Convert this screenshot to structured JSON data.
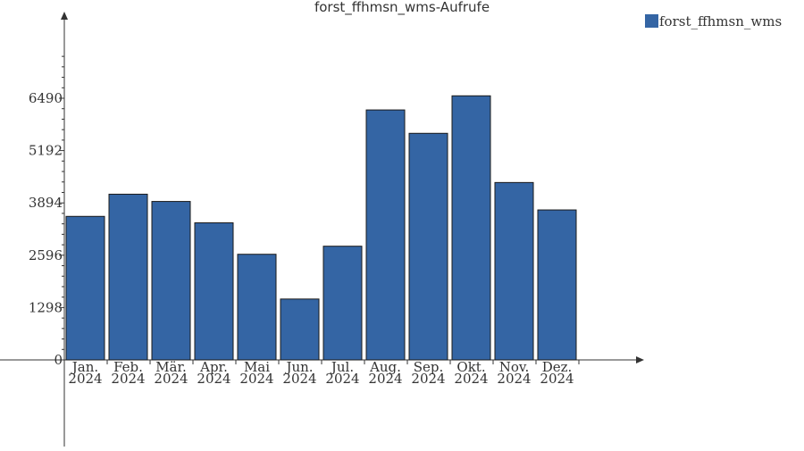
{
  "chart_data": {
    "type": "bar",
    "title": "forst_ffhmsn_wms-Aufrufe",
    "categories": [
      [
        "Jan.",
        "2024"
      ],
      [
        "Feb.",
        "2024"
      ],
      [
        "Mär.",
        "2024"
      ],
      [
        "Apr.",
        "2024"
      ],
      [
        "Mai",
        "2024"
      ],
      [
        "Jun.",
        "2024"
      ],
      [
        "Jul.",
        "2024"
      ],
      [
        "Aug.",
        "2024"
      ],
      [
        "Sep.",
        "2024"
      ],
      [
        "Okt.",
        "2024"
      ],
      [
        "Nov.",
        "2024"
      ],
      [
        "Dez.",
        "2024"
      ]
    ],
    "series": [
      {
        "name": "forst_ffhmsn_wms",
        "color": "#3465a4",
        "values": [
          3560,
          4110,
          3930,
          3400,
          2620,
          1510,
          2820,
          6200,
          5620,
          6550,
          4400,
          3720
        ]
      }
    ],
    "yticks": [
      "0",
      "1298",
      "2596",
      "3894",
      "5192",
      "6490"
    ],
    "ytick_values": [
      0,
      1298,
      2596,
      3894,
      5192,
      6490
    ],
    "ylim": [
      0,
      7000
    ],
    "grid": false,
    "legend": "top-right",
    "xlabel": "",
    "ylabel": ""
  }
}
